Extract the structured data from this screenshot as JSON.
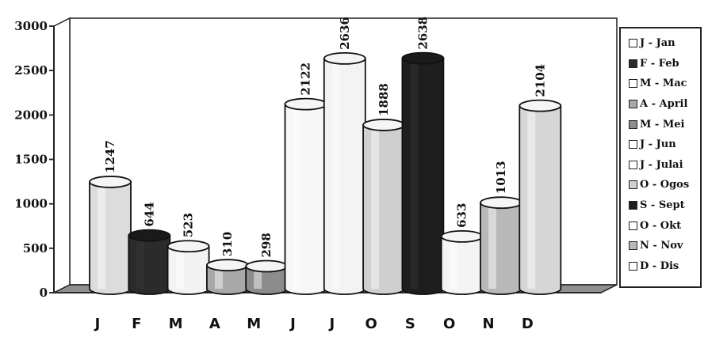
{
  "chart_data": {
    "type": "bar",
    "style": "3d-cylinder",
    "categories": [
      "J",
      "F",
      "M",
      "A",
      "M",
      "J",
      "J",
      "O",
      "S",
      "O",
      "N",
      "D"
    ],
    "values": [
      1247,
      644,
      523,
      310,
      298,
      2122,
      2636,
      1888,
      2638,
      633,
      1013,
      2104
    ],
    "value_labels": [
      "1247",
      "644",
      "523",
      "310",
      "298",
      "2122",
      "2636",
      "1888",
      "2638",
      "633",
      "1013",
      "2104"
    ],
    "bar_colors": [
      "#dcdcdc",
      "#2b2b2b",
      "#f2f2f2",
      "#a8a8a8",
      "#8c8c8c",
      "#f7f7f7",
      "#f3f3f3",
      "#cfcfcf",
      "#1e1e1e",
      "#f4f4f4",
      "#b8b8b8",
      "#d6d6d6"
    ],
    "ylim": [
      0,
      3000
    ],
    "yticks": [
      "0",
      "500",
      "1000",
      "1500",
      "2000",
      "2500",
      "3000"
    ],
    "xlabel": "",
    "ylabel": "",
    "title": "",
    "grid": false,
    "legend_position": "right",
    "legend": [
      {
        "label": "J - Jan",
        "color": "#ffffff"
      },
      {
        "label": "F - Feb",
        "color": "#2b2b2b"
      },
      {
        "label": "M - Mac",
        "color": "#ffffff"
      },
      {
        "label": "A - April",
        "color": "#a8a8a8"
      },
      {
        "label": "M - Mei",
        "color": "#8c8c8c"
      },
      {
        "label": "J - Jun",
        "color": "#ffffff"
      },
      {
        "label": "J - Julai",
        "color": "#ffffff"
      },
      {
        "label": "O - Ogos",
        "color": "#cfcfcf"
      },
      {
        "label": "S - Sept",
        "color": "#1e1e1e"
      },
      {
        "label": "O - Okt",
        "color": "#ffffff"
      },
      {
        "label": "N - Nov",
        "color": "#b8b8b8"
      },
      {
        "label": "D - Dis",
        "color": "#ffffff"
      }
    ]
  }
}
